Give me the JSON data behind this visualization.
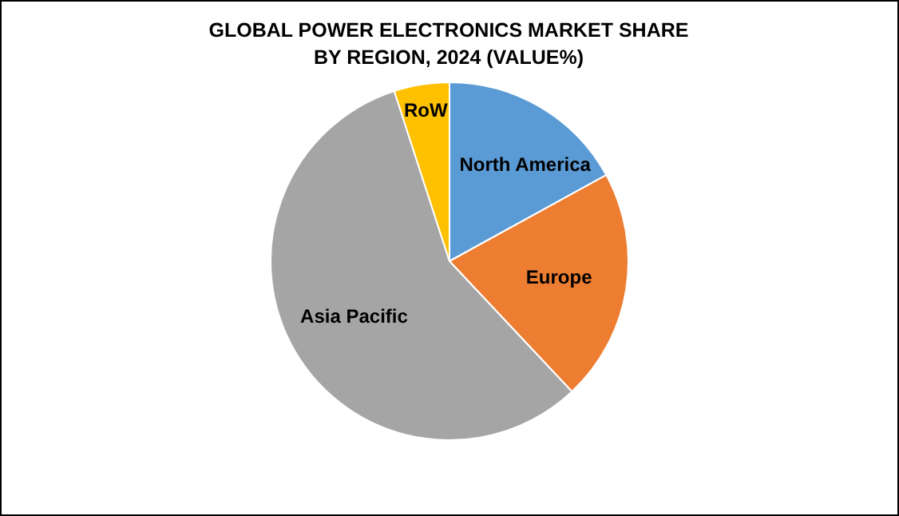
{
  "chart_data": {
    "type": "pie",
    "title": "GLOBAL POWER ELECTRONICS MARKET SHARE BY REGION, 2024 (VALUE%)",
    "categories": [
      "North America",
      "Europe",
      "Asia Pacific",
      "RoW"
    ],
    "values": [
      17,
      21,
      57,
      5
    ],
    "colors": [
      "#5b9bd5",
      "#ed7d31",
      "#a5a5a5",
      "#ffc000"
    ],
    "legend": false
  }
}
